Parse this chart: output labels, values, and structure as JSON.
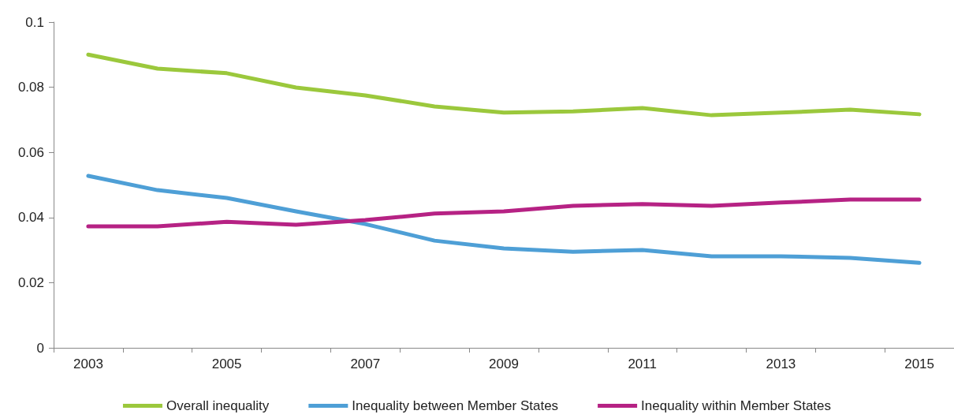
{
  "chart_data": {
    "type": "line",
    "categories": [
      "2003",
      null,
      "2005",
      null,
      "2007",
      null,
      "2009",
      null,
      "2011",
      null,
      "2013",
      null,
      "2015"
    ],
    "series": [
      {
        "name": "Overall inequality",
        "color": "#9bc83c",
        "values": [
          0.09,
          0.0857,
          0.0843,
          0.0799,
          0.0775,
          0.0741,
          0.0722,
          0.0726,
          0.0736,
          0.0714,
          0.0722,
          0.0731,
          0.0717
        ]
      },
      {
        "name": "Inequality between Member States",
        "color": "#4e9fd6",
        "values": [
          0.0528,
          0.0484,
          0.046,
          0.0419,
          0.038,
          0.0329,
          0.0305,
          0.0295,
          0.03,
          0.0281,
          0.0281,
          0.0276,
          0.0261
        ]
      },
      {
        "name": "Inequality within Member States",
        "color": "#b62284",
        "values": [
          0.0373,
          0.0373,
          0.0387,
          0.0378,
          0.0392,
          0.0412,
          0.0419,
          0.0436,
          0.0441,
          0.0436,
          0.0446,
          0.0455,
          0.0455
        ]
      }
    ],
    "ylim": [
      0,
      0.1
    ],
    "yticks": [
      0,
      0.02,
      0.04,
      0.06,
      0.08,
      0.1
    ],
    "grid": false,
    "legend": "bottom",
    "marker": "none",
    "line_style": "solid"
  }
}
